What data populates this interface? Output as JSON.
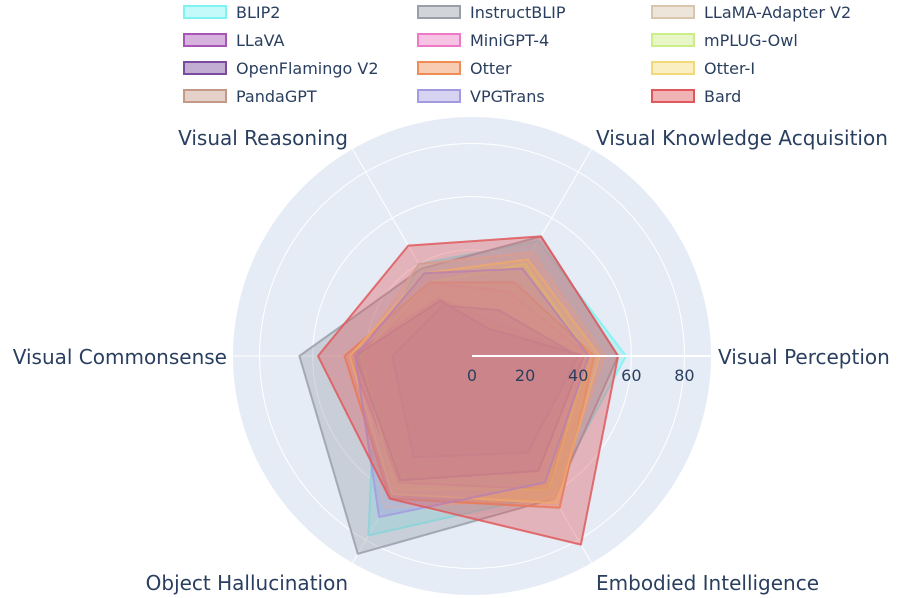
{
  "chart_data": {
    "type": "radar",
    "axes": [
      "Visual Perception",
      "Visual Knowledge Acquisition",
      "Visual Reasoning",
      "Visual Commonsense",
      "Object Hallucination",
      "Embodied Intelligence"
    ],
    "radial_ticks": [
      "0",
      "20",
      "40",
      "60",
      "80"
    ],
    "radial_range": [
      0,
      90
    ],
    "legend_position": "top",
    "series": [
      {
        "name": "BLIP2",
        "color": "#7ff3f3",
        "values": [
          58,
          50,
          40,
          36,
          78,
          60
        ]
      },
      {
        "name": "InstructBLIP",
        "color": "#9aa0aa",
        "values": [
          55,
          52,
          38,
          65,
          86,
          62
        ]
      },
      {
        "name": "LLaMA-Adapter V2",
        "color": "#d8c6ae",
        "values": [
          50,
          45,
          40,
          44,
          66,
          62
        ]
      },
      {
        "name": "LLaVA",
        "color": "#a855b8",
        "values": [
          42,
          15,
          25,
          46,
          55,
          58
        ]
      },
      {
        "name": "MiniGPT-4",
        "color": "#ee79c6",
        "values": [
          44,
          28,
          32,
          40,
          50,
          52
        ]
      },
      {
        "name": "mPLUG-Owl",
        "color": "#ccee86",
        "values": [
          44,
          40,
          32,
          42,
          58,
          58
        ]
      },
      {
        "name": "OpenFlamingo V2",
        "color": "#7b4b9e",
        "values": [
          42,
          12,
          24,
          44,
          54,
          50
        ]
      },
      {
        "name": "Otter",
        "color": "#ee8e55",
        "values": [
          46,
          32,
          32,
          48,
          62,
          66
        ]
      },
      {
        "name": "Otter-I",
        "color": "#f3d97a",
        "values": [
          48,
          42,
          36,
          46,
          60,
          64
        ]
      },
      {
        "name": "PandaGPT",
        "color": "#c49a87",
        "values": [
          40,
          20,
          22,
          30,
          44,
          42
        ]
      },
      {
        "name": "VPGTrans",
        "color": "#a39be0",
        "values": [
          44,
          38,
          36,
          44,
          70,
          55
        ]
      },
      {
        "name": "Bard",
        "color": "#e0585b",
        "values": [
          55,
          52,
          48,
          58,
          62,
          82
        ]
      }
    ]
  }
}
